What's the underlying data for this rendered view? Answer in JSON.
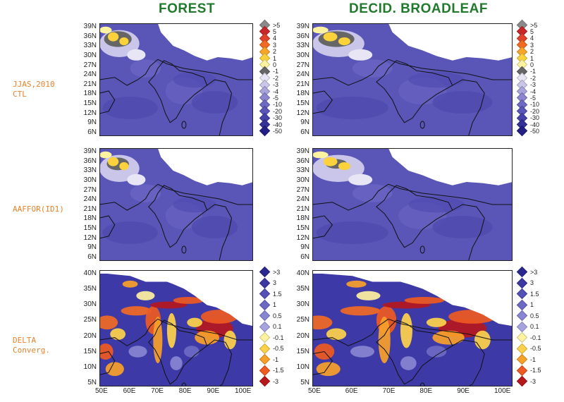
{
  "titles": {
    "left": "FOREST",
    "right": "DECID. BROADLEAF"
  },
  "row_labels": [
    {
      "line1": "JJAS,2010",
      "line2": "CTL"
    },
    {
      "line1": "AAFFOR(ID1)",
      "line2": ""
    },
    {
      "line1": "DELTA",
      "line2": "Converg."
    }
  ],
  "lat_ticks_upper": [
    "39N",
    "36N",
    "33N",
    "30N",
    "27N",
    "24N",
    "21N",
    "18N",
    "15N",
    "12N",
    "9N",
    "6N"
  ],
  "lat_ticks_lower": [
    "40N",
    "35N",
    "30N",
    "25N",
    "20N",
    "15N",
    "10N",
    "5N"
  ],
  "lon_ticks": [
    "50E",
    "60E",
    "70E",
    "80E",
    "90E",
    "100E"
  ],
  "legend_upper": [
    {
      "label": ">5",
      "color": "#8a8a8a"
    },
    {
      "label": "5",
      "color": "#c7262a"
    },
    {
      "label": "4",
      "color": "#e1402a"
    },
    {
      "label": "3",
      "color": "#f06a24"
    },
    {
      "label": "2",
      "color": "#f7a52a"
    },
    {
      "label": "1",
      "color": "#fbd23c"
    },
    {
      "label": "0",
      "color": "#fdf2a0"
    },
    {
      "label": "-1",
      "color": "#666666"
    },
    {
      "label": "-2",
      "color": "#e8e6f5"
    },
    {
      "label": "-3",
      "color": "#c9c6ea"
    },
    {
      "label": "-4",
      "color": "#a9a4dc"
    },
    {
      "label": "-5",
      "color": "#8b86cf"
    },
    {
      "label": "-10",
      "color": "#6e69c3"
    },
    {
      "label": "-20",
      "color": "#5a55b8"
    },
    {
      "label": "-30",
      "color": "#4741aa"
    },
    {
      "label": "-40",
      "color": "#343099"
    },
    {
      "label": "-50",
      "color": "#231f85"
    }
  ],
  "legend_lower": [
    {
      "label": ">3",
      "color": "#2a2890"
    },
    {
      "label": "3",
      "color": "#3b37a3"
    },
    {
      "label": "1.5",
      "color": "#5350b6"
    },
    {
      "label": "1",
      "color": "#6c69c4"
    },
    {
      "label": "0.5",
      "color": "#8885d2"
    },
    {
      "label": "0.1",
      "color": "#a6a3de"
    },
    {
      "label": "-0.1",
      "color": "#fff2a0"
    },
    {
      "label": "-0.5",
      "color": "#fdd24a"
    },
    {
      "label": "-1",
      "color": "#f7a129"
    },
    {
      "label": "-1.5",
      "color": "#ee5a22"
    },
    {
      "label": "-3",
      "color": "#b5171d"
    }
  ],
  "colors": {
    "title": "#1f7a2b",
    "row_label": "#e8832a",
    "ocean": "#5a56b8",
    "mask": "#ffffff"
  }
}
